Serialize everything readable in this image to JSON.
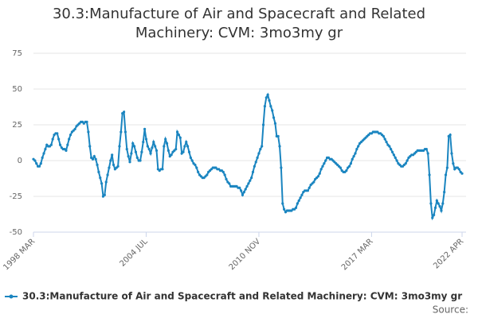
{
  "chart_data": {
    "type": "line",
    "title": "30.3:Manufacture of Air and Spacecraft and Related Machinery: CVM: 3mo3my gr",
    "source": "Source:",
    "categories": [
      "1998 MAR",
      null,
      null,
      null,
      null,
      null,
      null,
      null,
      null,
      null,
      null,
      null,
      null,
      null,
      null,
      null,
      null,
      null,
      null,
      null,
      null,
      null,
      null,
      null,
      null,
      null,
      null,
      null,
      null,
      null,
      null,
      null,
      null,
      null,
      null,
      null,
      null,
      null,
      null,
      null,
      null,
      null,
      null,
      null,
      null,
      null,
      null,
      null,
      null,
      null,
      null,
      null,
      null,
      null,
      null,
      null,
      null,
      null,
      null,
      null,
      null,
      null,
      null,
      null,
      null,
      null,
      null,
      null,
      null,
      null,
      null,
      null,
      null,
      null,
      null,
      null,
      "2004 JUL",
      null,
      null,
      null,
      null,
      null,
      null,
      null,
      null,
      null,
      null,
      null,
      null,
      null,
      null,
      null,
      null,
      null,
      null,
      null,
      null,
      null,
      null,
      null,
      null,
      null,
      null,
      null,
      null,
      null,
      null,
      null,
      null,
      null,
      null,
      null,
      null,
      null,
      null,
      null,
      null,
      null,
      null,
      null,
      null,
      null,
      null,
      null,
      null,
      null,
      null,
      null,
      null,
      null,
      null,
      null,
      null,
      null,
      null,
      null,
      null,
      null,
      null,
      null,
      null,
      null,
      null,
      null,
      null,
      null,
      null,
      null,
      null,
      null,
      null,
      null,
      "2010 NOV",
      null,
      null,
      null,
      null,
      null,
      null,
      null,
      null,
      null,
      null,
      null,
      null,
      null,
      null,
      null,
      null,
      null,
      null,
      null,
      null,
      null,
      null,
      null,
      null,
      null,
      null,
      null,
      null,
      null,
      null,
      null,
      null,
      null,
      null,
      null,
      null,
      null,
      null,
      null,
      null,
      null,
      null,
      null,
      null,
      null,
      null,
      null,
      null,
      null,
      null,
      null,
      null,
      null,
      null,
      null,
      null,
      null,
      null,
      null,
      null,
      null,
      null,
      null,
      null,
      null,
      null,
      null,
      null,
      null,
      null,
      null,
      null,
      null,
      null,
      null,
      "2017 MAR",
      null,
      null,
      null,
      null,
      null,
      null,
      null,
      null,
      null,
      null,
      null,
      null,
      null,
      null,
      null,
      null,
      null,
      null,
      null,
      null,
      null,
      null,
      null,
      null,
      null,
      null,
      null,
      null,
      null,
      null,
      null,
      null,
      null,
      null,
      null,
      null,
      null,
      null,
      null,
      null,
      null,
      null,
      null,
      null,
      null,
      null,
      null,
      null,
      null,
      null,
      null,
      null,
      null,
      null,
      null,
      null,
      null,
      null,
      null,
      null,
      "2022 APR"
    ],
    "series": [
      {
        "name": "30.3:Manufacture of Air and Spacecraft and Related Machinery: CVM: 3mo3my gr",
        "color": "#1a85c0",
        "values": [
          1,
          0,
          -2,
          -4,
          -4,
          -2,
          2,
          5,
          8,
          11,
          10,
          10,
          11,
          15,
          18,
          19,
          19,
          15,
          11,
          9,
          8,
          8,
          7,
          11,
          15,
          18,
          20,
          21,
          22,
          24,
          25,
          26,
          27,
          27,
          26,
          27,
          27,
          20,
          10,
          2,
          1,
          3,
          1,
          -3,
          -8,
          -12,
          -16,
          -25,
          -24,
          -15,
          -10,
          -5,
          0,
          4,
          -3,
          -6,
          -5,
          -4,
          10,
          20,
          33,
          34,
          20,
          8,
          3,
          -1,
          5,
          12,
          10,
          6,
          2,
          0,
          0,
          6,
          13,
          22,
          15,
          10,
          8,
          5,
          9,
          13,
          10,
          7,
          -6,
          -7,
          -6,
          -6,
          10,
          15,
          12,
          7,
          3,
          4,
          6,
          7,
          8,
          20,
          18,
          16,
          5,
          6,
          10,
          13,
          10,
          6,
          2,
          0,
          -2,
          -3,
          -5,
          -8,
          -10,
          -11,
          -12,
          -12,
          -11,
          -10,
          -8,
          -7,
          -6,
          -5,
          -5,
          -5,
          -6,
          -6,
          -7,
          -7,
          -8,
          -10,
          -13,
          -15,
          -16,
          -18,
          -18,
          -18,
          -18,
          -18,
          -19,
          -19,
          -21,
          -24,
          -22,
          -20,
          -18,
          -16,
          -14,
          -12,
          -8,
          -4,
          -1,
          2,
          5,
          8,
          10,
          25,
          38,
          44,
          46,
          42,
          38,
          35,
          30,
          26,
          17,
          17,
          10,
          -5,
          -30,
          -34,
          -36,
          -35,
          -35,
          -35,
          -35,
          -34,
          -34,
          -33,
          -30,
          -28,
          -26,
          -24,
          -22,
          -21,
          -21,
          -21,
          -19,
          -17,
          -16,
          -15,
          -13,
          -12,
          -11,
          -9,
          -6,
          -4,
          -2,
          0,
          2,
          2,
          1,
          1,
          0,
          -1,
          -2,
          -3,
          -4,
          -5,
          -7,
          -8,
          -8,
          -7,
          -5,
          -4,
          -2,
          1,
          3,
          5,
          8,
          10,
          12,
          13,
          14,
          15,
          16,
          17,
          18,
          19,
          19,
          20,
          20,
          20,
          20,
          19,
          19,
          18,
          17,
          15,
          13,
          11,
          10,
          8,
          6,
          4,
          2,
          0,
          -2,
          -3,
          -4,
          -4,
          -3,
          -2,
          0,
          2,
          3,
          4,
          4,
          5,
          6,
          7,
          7,
          7,
          7,
          7,
          8,
          8,
          5,
          -10,
          -30,
          -40,
          -38,
          -33,
          -28,
          -30,
          -32,
          -35,
          -30,
          -22,
          -10,
          -5,
          17,
          18,
          5,
          -2,
          -6,
          -5,
          -5,
          -6,
          -8,
          -9
        ]
      }
    ],
    "ylim": [
      -50,
      75
    ],
    "yticks": [
      -50,
      -25,
      0,
      25,
      50,
      75
    ],
    "grid": true
  }
}
